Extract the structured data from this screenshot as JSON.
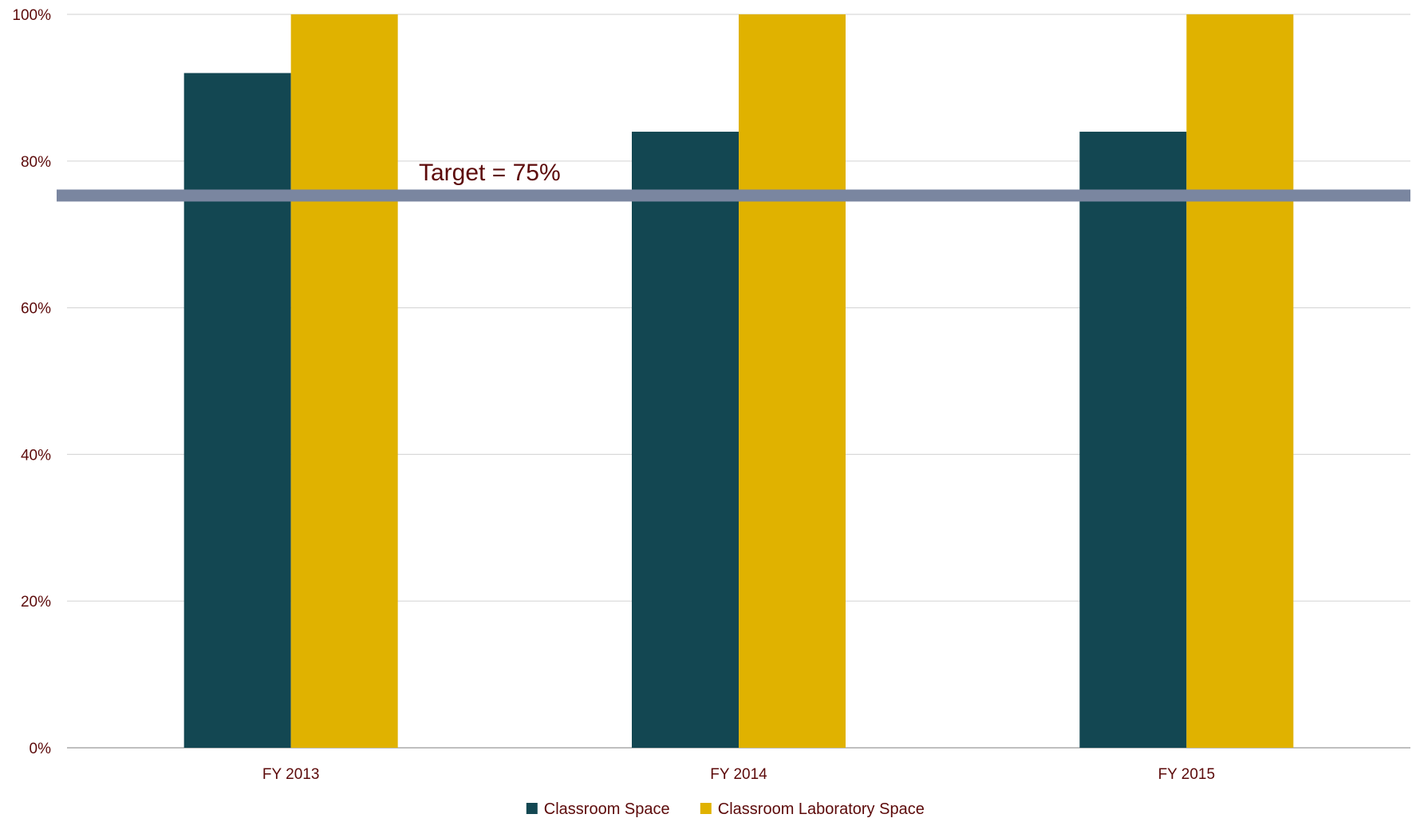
{
  "chart_data": {
    "type": "bar",
    "categories": [
      "FY 2013",
      "FY 2014",
      "FY 2015"
    ],
    "series": [
      {
        "name": "Classroom Space",
        "values": [
          92,
          84,
          84
        ],
        "color": "#134752"
      },
      {
        "name": "Classroom Laboratory Space",
        "values": [
          100,
          100,
          100
        ],
        "color": "#e0b200"
      }
    ],
    "ylim": [
      0,
      100
    ],
    "yticks": [
      0,
      20,
      40,
      60,
      80,
      100
    ],
    "ytick_labels": [
      "0%",
      "20%",
      "40%",
      "60%",
      "80%",
      "100%"
    ],
    "target": {
      "value": 75.3,
      "label": "Target = 75%",
      "color": "#7a86a0"
    },
    "grid": true,
    "legend_position": "bottom-center",
    "xlabel": "",
    "ylabel": ""
  }
}
